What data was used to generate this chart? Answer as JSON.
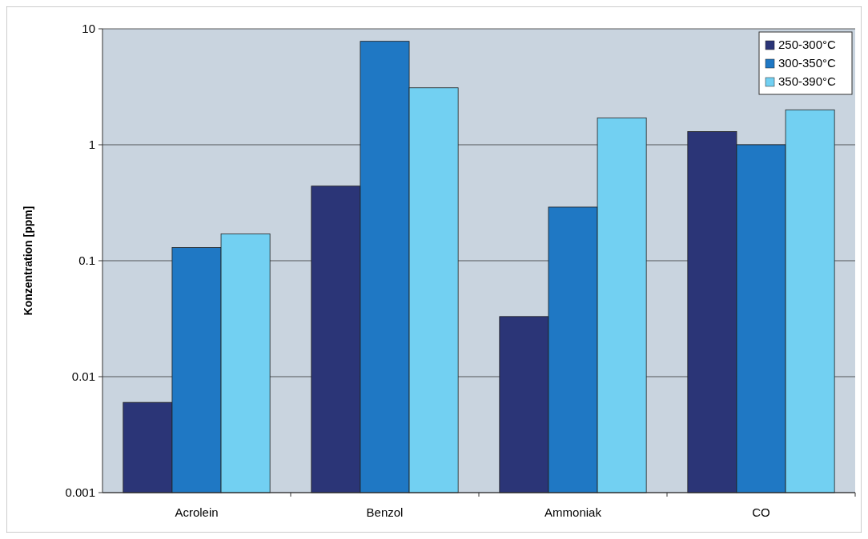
{
  "chart_data": {
    "type": "bar",
    "ylabel": "Konzentration [ppm]",
    "categories": [
      "Acrolein",
      "Benzol",
      "Ammoniak",
      "CO"
    ],
    "series": [
      {
        "name": "250-300°C",
        "color": "#2b3577",
        "values": [
          0.006,
          0.44,
          0.033,
          1.3
        ]
      },
      {
        "name": "300-350°C",
        "color": "#1f78c4",
        "values": [
          0.13,
          7.8,
          0.29,
          1.0
        ]
      },
      {
        "name": "350-390°C",
        "color": "#72d0f2",
        "values": [
          0.17,
          3.1,
          1.7,
          2.0
        ]
      }
    ],
    "log": true,
    "ylim": [
      0.001,
      10
    ],
    "yticks": [
      0.001,
      0.01,
      0.1,
      1,
      10
    ],
    "grid": "y",
    "legend": "top right"
  }
}
